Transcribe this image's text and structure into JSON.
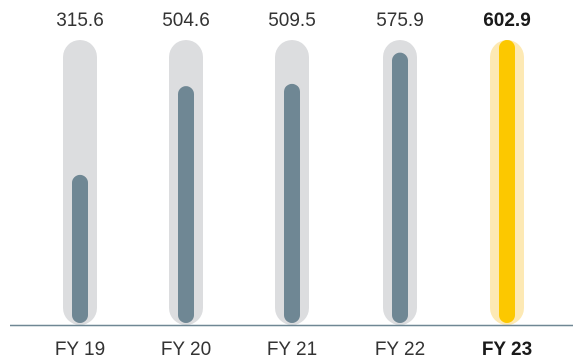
{
  "chart_data": {
    "type": "bar",
    "categories": [
      "FY 19",
      "FY 20",
      "FY 21",
      "FY 22",
      "FY 23"
    ],
    "values": [
      315.6,
      504.6,
      509.5,
      575.9,
      602.9
    ],
    "value_labels": [
      "315.6",
      "504.6",
      "509.5",
      "575.9",
      "602.9"
    ],
    "highlight_index": 4,
    "ylim": [
      0,
      602.9
    ],
    "title": "",
    "xlabel": "",
    "ylabel": "",
    "grid": false,
    "legend": "none"
  },
  "colors": {
    "bar": "#6f8794",
    "track": "#dcdddf",
    "highlight_bar": "#fcc800",
    "highlight_track": "#fde9b4",
    "baseline": "#6f8794"
  }
}
